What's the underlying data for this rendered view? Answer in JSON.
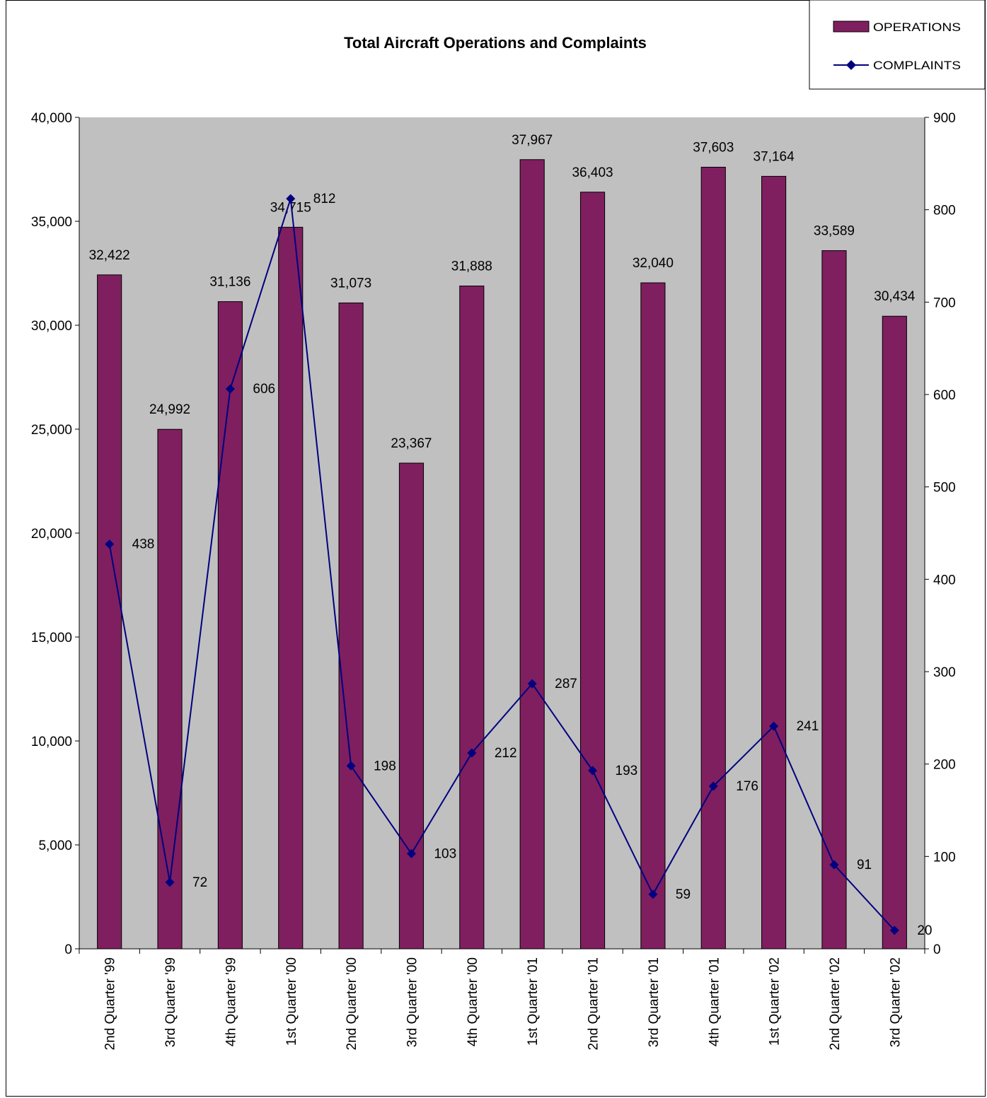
{
  "chart_data": {
    "type": "bar",
    "title": "Total Aircraft Operations and Complaints",
    "categories": [
      "2nd Quarter '99",
      "3rd Quarter '99",
      "4th Quarter '99",
      "1st Quarter '00",
      "2nd Quarter '00",
      "3rd Quarter '00",
      "4th Quarter '00",
      "1st Quarter '01",
      "2nd Quarter '01",
      "3rd Quarter '01",
      "4th Quarter '01",
      "1st Quarter '02",
      "2nd Quarter '02",
      "3rd Quarter '02"
    ],
    "series": [
      {
        "name": "OPERATIONS",
        "type": "bar",
        "axis": "left",
        "color": "#7F1F5F",
        "values": [
          32422,
          24992,
          31136,
          34715,
          31073,
          23367,
          31888,
          37967,
          36403,
          32040,
          37603,
          37164,
          33589,
          30434
        ],
        "labels": [
          "32,422",
          "24,992",
          "31,136",
          "34,715",
          "31,073",
          "23,367",
          "31,888",
          "37,967",
          "36,403",
          "32,040",
          "37,603",
          "37,164",
          "33,589",
          "30,434"
        ]
      },
      {
        "name": "COMPLAINTS",
        "type": "line",
        "axis": "right",
        "color": "#000080",
        "values": [
          438,
          72,
          606,
          812,
          198,
          103,
          212,
          287,
          193,
          59,
          176,
          241,
          91,
          20
        ],
        "labels": [
          "438",
          "72",
          "606",
          "812",
          "198",
          "103",
          "212",
          "287",
          "193",
          "59",
          "176",
          "241",
          "91",
          "20"
        ]
      }
    ],
    "ylim_left": [
      0,
      40000
    ],
    "yticks_left": [
      "0",
      "5,000",
      "10,000",
      "15,000",
      "20,000",
      "25,000",
      "30,000",
      "35,000",
      "40,000"
    ],
    "ylim_right": [
      0,
      900
    ],
    "yticks_right": [
      "0",
      "100",
      "200",
      "300",
      "400",
      "500",
      "600",
      "700",
      "800",
      "900"
    ],
    "plot_background": "#C0C0C0",
    "grid": false,
    "legend_position": "top-right"
  }
}
